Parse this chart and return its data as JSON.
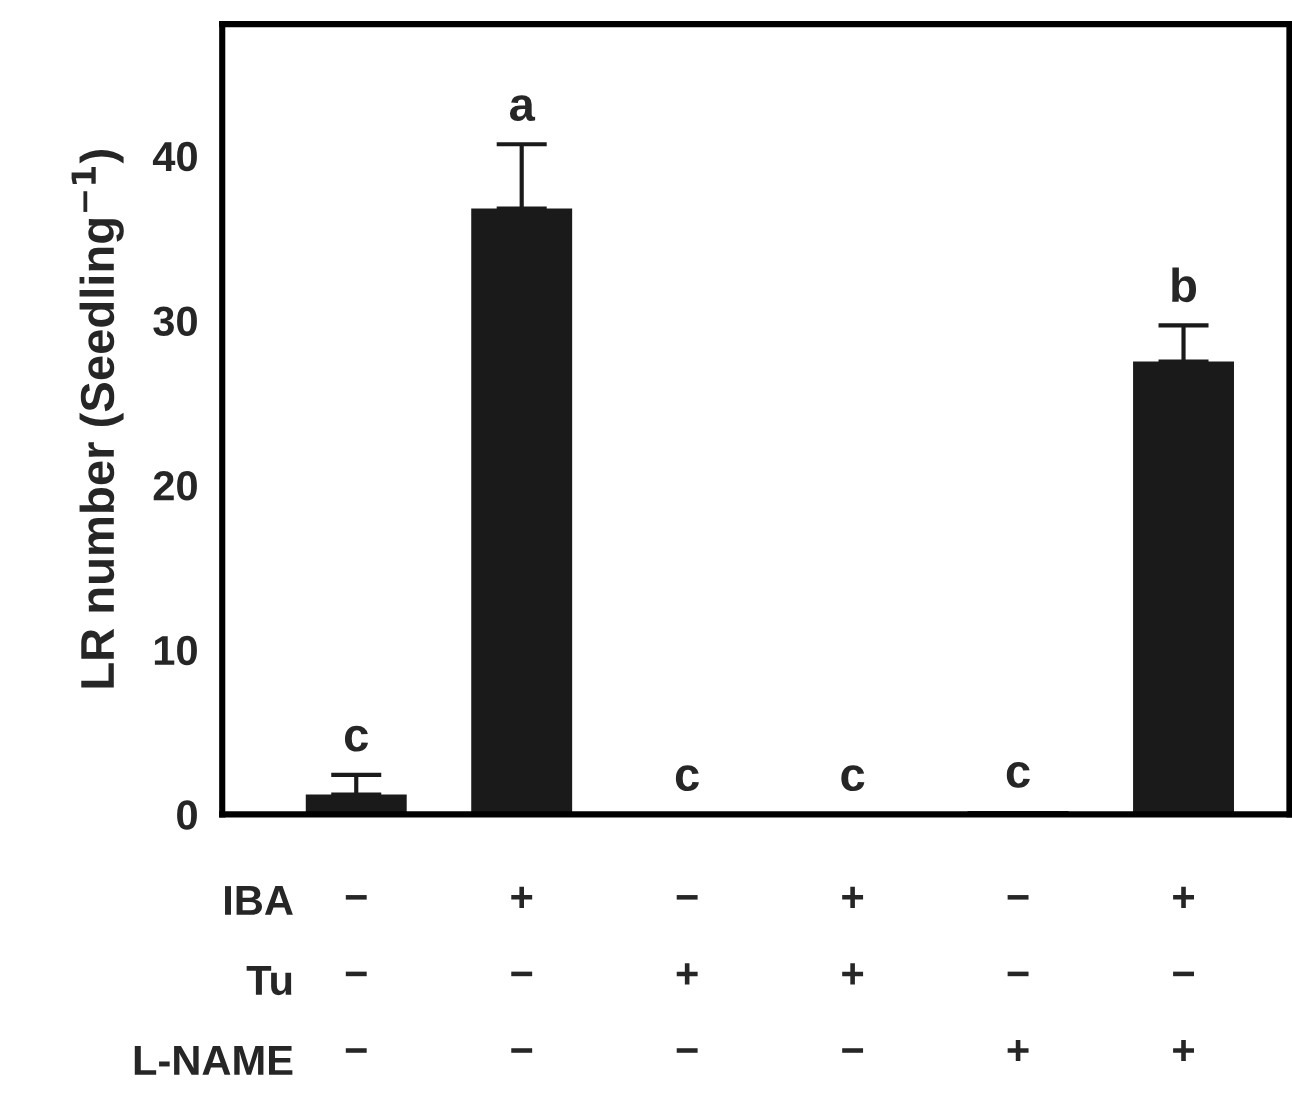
{
  "chart_data": {
    "type": "bar",
    "ylabel": "LR number (Seedling$^{−1}$)",
    "categories": [
      "−\n−\n−",
      "+\n−\n−",
      "−\n+\n−",
      "+\n+\n−",
      "−\n−\n+",
      "+\n−\n+"
    ],
    "values": [
      1.2,
      36.8,
      0,
      0,
      0.2,
      27.5
    ],
    "errors": [
      1.2,
      3.9,
      null,
      null,
      null,
      2.2
    ],
    "color": "#1a1a1a",
    "ylim": [
      0,
      48
    ],
    "yticks": [
      0,
      10,
      20,
      30,
      40
    ],
    "grid": false,
    "value_labels": [
      "c",
      "a",
      "c",
      "c",
      "c",
      "b"
    ],
    "annotations": [
      "IBA",
      "Tu",
      "L-NAME"
    ]
  }
}
